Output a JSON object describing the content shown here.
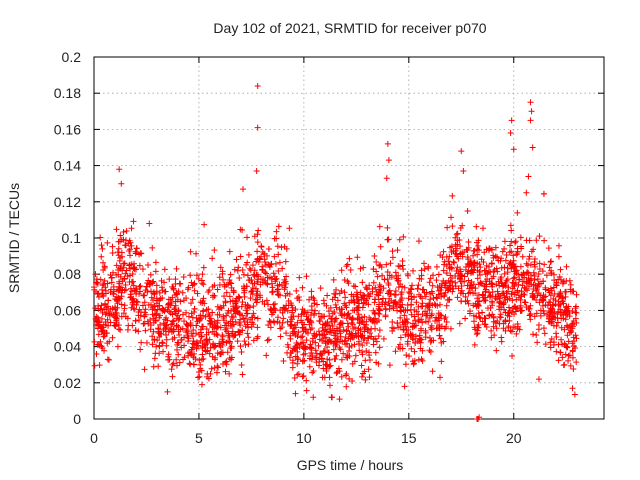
{
  "chart_data": {
    "type": "scatter",
    "title": "Day 102 of 2021, SRMTID for receiver p070",
    "xlabel": "GPS time / hours",
    "ylabel": "SRMTID / TECUs",
    "xlim": [
      0,
      24.3
    ],
    "ylim": [
      0,
      0.2
    ],
    "xticks": [
      0,
      5,
      10,
      15,
      20
    ],
    "xtick_labels": [
      "0",
      "5",
      "10",
      "15",
      "20"
    ],
    "yticks": [
      0,
      0.02,
      0.04,
      0.06,
      0.08,
      0.1,
      0.12,
      0.14,
      0.16,
      0.18,
      0.2
    ],
    "ytick_labels": [
      "0",
      "0.02",
      "0.04",
      "0.06",
      "0.08",
      "0.1",
      "0.12",
      "0.14",
      "0.16",
      "0.18",
      "0.2"
    ],
    "grid": true,
    "marker": "+",
    "color": "#ff0000",
    "baseline_profile": [
      [
        0,
        0.058
      ],
      [
        1,
        0.065
      ],
      [
        1.5,
        0.085
      ],
      [
        2,
        0.07
      ],
      [
        2.5,
        0.062
      ],
      [
        3,
        0.056
      ],
      [
        4,
        0.055
      ],
      [
        5,
        0.05
      ],
      [
        6,
        0.052
      ],
      [
        7,
        0.058
      ],
      [
        7.5,
        0.066
      ],
      [
        8,
        0.078
      ],
      [
        8.5,
        0.072
      ],
      [
        9,
        0.065
      ],
      [
        9.5,
        0.048
      ],
      [
        10,
        0.046
      ],
      [
        10.5,
        0.044
      ],
      [
        11,
        0.042
      ],
      [
        12,
        0.05
      ],
      [
        13,
        0.054
      ],
      [
        13.5,
        0.066
      ],
      [
        14,
        0.074
      ],
      [
        15,
        0.058
      ],
      [
        16,
        0.056
      ],
      [
        16.5,
        0.06
      ],
      [
        17,
        0.08
      ],
      [
        17.8,
        0.084
      ],
      [
        18.3,
        0.074
      ],
      [
        19,
        0.068
      ],
      [
        19.5,
        0.07
      ],
      [
        20,
        0.072
      ],
      [
        20.8,
        0.08
      ],
      [
        21.5,
        0.066
      ],
      [
        22,
        0.062
      ],
      [
        22.5,
        0.052
      ],
      [
        23,
        0.046
      ]
    ],
    "highlight_points": [
      {
        "x": 7.8,
        "y": 0.184
      },
      {
        "x": 7.8,
        "y": 0.161
      },
      {
        "x": 7.75,
        "y": 0.137
      },
      {
        "x": 7.1,
        "y": 0.127
      },
      {
        "x": 1.2,
        "y": 0.138
      },
      {
        "x": 1.3,
        "y": 0.13
      },
      {
        "x": 14.0,
        "y": 0.152
      },
      {
        "x": 14.05,
        "y": 0.143
      },
      {
        "x": 13.95,
        "y": 0.133
      },
      {
        "x": 17.5,
        "y": 0.148
      },
      {
        "x": 17.6,
        "y": 0.137
      },
      {
        "x": 19.9,
        "y": 0.165
      },
      {
        "x": 19.85,
        "y": 0.158
      },
      {
        "x": 20.0,
        "y": 0.149
      },
      {
        "x": 20.8,
        "y": 0.175
      },
      {
        "x": 20.85,
        "y": 0.17
      },
      {
        "x": 20.8,
        "y": 0.165
      },
      {
        "x": 20.9,
        "y": 0.15
      },
      {
        "x": 20.7,
        "y": 0.134
      },
      {
        "x": 20.6,
        "y": 0.125
      },
      {
        "x": 18.3,
        "y": 0.0
      },
      {
        "x": 18.35,
        "y": 0.001
      },
      {
        "x": 18.25,
        "y": 0.0
      },
      {
        "x": 3.5,
        "y": 0.015
      },
      {
        "x": 9.6,
        "y": 0.014
      },
      {
        "x": 11.7,
        "y": 0.011
      },
      {
        "x": 14.8,
        "y": 0.018
      },
      {
        "x": 21.2,
        "y": 0.022
      },
      {
        "x": 22.8,
        "y": 0.017
      },
      {
        "x": 0.4,
        "y": 0.094
      },
      {
        "x": 12.0,
        "y": 0.024
      }
    ],
    "series_range": [
      0,
      23.0
    ]
  }
}
